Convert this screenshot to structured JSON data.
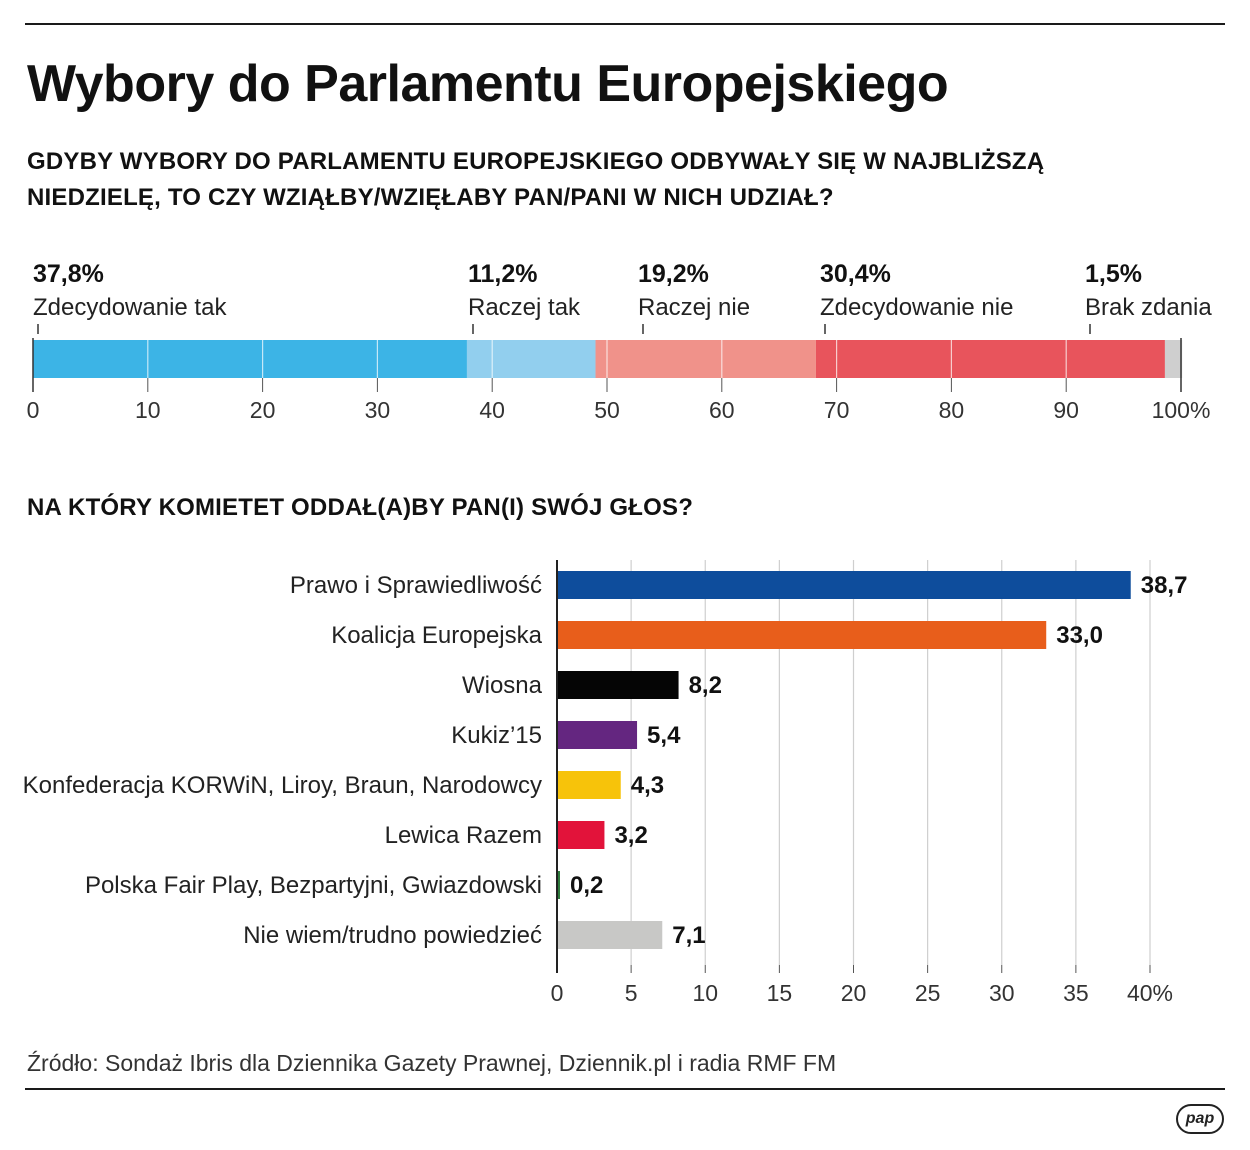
{
  "title": "Wybory do Parlamentu Europejskiego",
  "question1": {
    "line1": "GDYBY WYBORY DO PARLAMENTU EUROPEJSKIEGO ODBYWAŁY SIĘ W NAJBLIŻSZĄ",
    "line2": "NIEDZIELĘ, TO CZY WZIĄŁBY/WZIĘŁABY PAN/PANI W NICH UDZIAŁ?"
  },
  "question2": "NA KTÓRY KOMIETET ODDAŁ(A)BY PAN(I) SWÓJ GŁOS?",
  "source": "Źródło: Sondaż Ibris dla Dziennika Gazety Prawnej, Dziennik.pl i radia RMF FM",
  "logo": "pap",
  "chart_data": [
    {
      "type": "bar",
      "orientation": "horizontal-stacked",
      "title": "GDYBY WYBORY DO PARLAMENTU EUROPEJSKIEGO ODBYWAŁY SIĘ W NAJBLIŻSZĄ NIEDZIELĘ, TO CZY WZIĄŁBY/WZIĘŁABY PAN/PANI W NICH UDZIAŁ?",
      "xlim": [
        0,
        100
      ],
      "xticks": [
        "0",
        "10",
        "20",
        "30",
        "40",
        "50",
        "60",
        "70",
        "80",
        "90",
        "100%"
      ],
      "grid": true,
      "segments": [
        {
          "label": "Zdecydowanie tak",
          "value": 37.8,
          "value_label": "37,8%",
          "color": "#3cb4e6"
        },
        {
          "label": "Raczej tak",
          "value": 11.2,
          "value_label": "11,2%",
          "color": "#92cfee"
        },
        {
          "label": "Raczej nie",
          "value": 19.2,
          "value_label": "19,2%",
          "color": "#f0928a"
        },
        {
          "label": "Zdecydowanie nie",
          "value": 30.4,
          "value_label": "30,4%",
          "color": "#e8545c"
        },
        {
          "label": "Brak zdania",
          "value": 1.5,
          "value_label": "1,5%",
          "color": "#cfcfcf"
        }
      ]
    },
    {
      "type": "bar",
      "orientation": "horizontal",
      "title": "NA KTÓRY KOMIETET ODDAŁ(A)BY PAN(I) SWÓJ GŁOS?",
      "xlim": [
        0,
        40
      ],
      "xticks": [
        "0",
        "5",
        "10",
        "15",
        "20",
        "25",
        "30",
        "35",
        "40%"
      ],
      "grid": true,
      "categories": [
        "Prawo i Sprawiedliwość",
        "Koalicja Europejska",
        "Wiosna",
        "Kukiz’15",
        "Konfederacja KORWiN, Liroy, Braun, Narodowcy",
        "Lewica Razem",
        "Polska Fair Play, Bezpartyjni, Gwiazdowski",
        "Nie wiem/trudno powiedzieć"
      ],
      "values": [
        38.7,
        33.0,
        8.2,
        5.4,
        4.3,
        3.2,
        0.2,
        7.1
      ],
      "value_labels": [
        "38,7",
        "33,0",
        "8,2",
        "5,4",
        "4,3",
        "3,2",
        "0,2",
        "7,1"
      ],
      "colors": [
        "#0e4d9c",
        "#e85e1b",
        "#050505",
        "#642680",
        "#f7c30a",
        "#e2133a",
        "#2e7a3c",
        "#c8c8c6"
      ]
    }
  ]
}
